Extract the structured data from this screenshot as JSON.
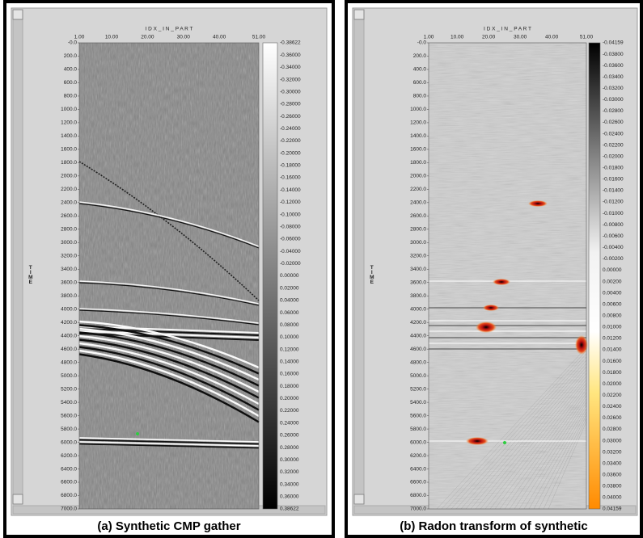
{
  "panels": [
    {
      "axis_title": "I D X _ I N _ P A R T",
      "y_label": "TIME",
      "xticks": [
        "1.00",
        "10.00",
        "20.00",
        "30.00",
        "40.00",
        "51.00"
      ],
      "yticks": [
        "-0.0",
        "200.0",
        "400.0",
        "600.0",
        "800.0",
        "1000.0",
        "1200.0",
        "1400.0",
        "1600.0",
        "1800.0",
        "2000.0",
        "2200.0",
        "2400.0",
        "2600.0",
        "2800.0",
        "3000.0",
        "3200.0",
        "3400.0",
        "3600.0",
        "3800.0",
        "4000.0",
        "4200.0",
        "4400.0",
        "4600.0",
        "4800.0",
        "5000.0",
        "5200.0",
        "5400.0",
        "5600.0",
        "5800.0",
        "6000.0",
        "6200.0",
        "6400.0",
        "6600.0",
        "6800.0",
        "7000.0"
      ],
      "colorbar": [
        "-0.38622",
        "-0.36000",
        "-0.34000",
        "-0.32000",
        "-0.30000",
        "-0.28000",
        "-0.26000",
        "-0.24000",
        "-0.22000",
        "-0.20000",
        "-0.18000",
        "-0.16000",
        "-0.14000",
        "-0.12000",
        "-0.10000",
        "-0.08000",
        "-0.06000",
        "-0.04000",
        "-0.02000",
        "0.00000",
        "0.02000",
        "0.04000",
        "0.06000",
        "0.08000",
        "0.10000",
        "0.12000",
        "0.14000",
        "0.16000",
        "0.18000",
        "0.20000",
        "0.22000",
        "0.24000",
        "0.26000",
        "0.28000",
        "0.30000",
        "0.32000",
        "0.34000",
        "0.36000",
        "0.38622"
      ],
      "caption": "(a) Synthetic CMP gather"
    },
    {
      "axis_title": "I D X _ I N _ P A R T",
      "y_label": "TIME",
      "xticks": [
        "1.00",
        "10.00",
        "20.00",
        "30.00",
        "40.00",
        "51.00"
      ],
      "yticks": [
        "-0.0",
        "200.0",
        "400.0",
        "600.0",
        "800.0",
        "1000.0",
        "1200.0",
        "1400.0",
        "1600.0",
        "1800.0",
        "2000.0",
        "2200.0",
        "2400.0",
        "2600.0",
        "2800.0",
        "3000.0",
        "3200.0",
        "3400.0",
        "3600.0",
        "3800.0",
        "4000.0",
        "4200.0",
        "4400.0",
        "4600.0",
        "4800.0",
        "5000.0",
        "5200.0",
        "5400.0",
        "5600.0",
        "5800.0",
        "6000.0",
        "6200.0",
        "6400.0",
        "6600.0",
        "6800.0",
        "7000.0"
      ],
      "colorbar": [
        "-0.04159",
        "-0.03800",
        "-0.03600",
        "-0.03400",
        "-0.03200",
        "-0.03000",
        "-0.02800",
        "-0.02600",
        "-0.02400",
        "-0.02200",
        "-0.02000",
        "-0.01800",
        "-0.01600",
        "-0.01400",
        "-0.01200",
        "-0.01000",
        "-0.00800",
        "-0.00600",
        "-0.00400",
        "-0.00200",
        "0.00000",
        "0.00200",
        "0.00400",
        "0.00600",
        "0.00800",
        "0.01000",
        "0.01200",
        "0.01400",
        "0.01600",
        "0.01800",
        "0.02000",
        "0.02200",
        "0.02400",
        "0.02600",
        "0.02800",
        "0.03000",
        "0.03200",
        "0.03400",
        "0.03600",
        "0.03800",
        "0.04000",
        "0.04159"
      ],
      "caption": "(b) Radon transform of synthetic"
    }
  ]
}
